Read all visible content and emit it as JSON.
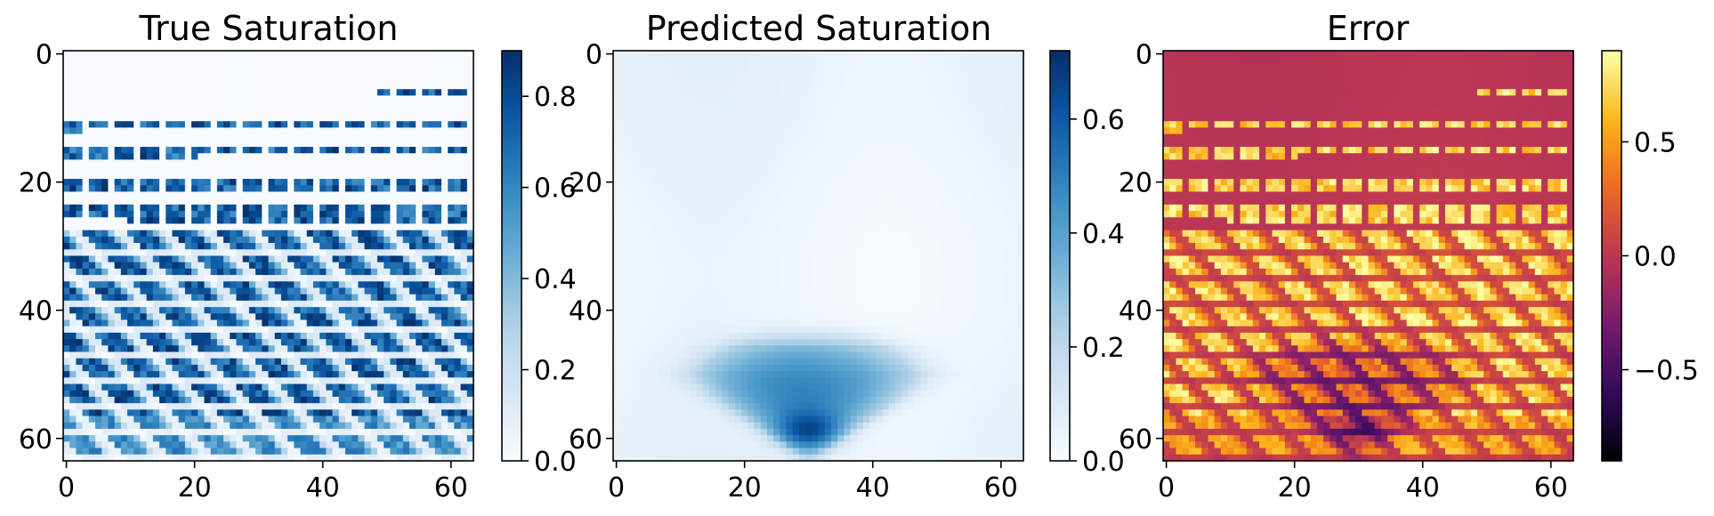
{
  "chart_data": [
    {
      "type": "heatmap",
      "title": "True Saturation",
      "grid_size": 64,
      "xlim": [
        -0.5,
        63.5
      ],
      "ylim": [
        63.5,
        -0.5
      ],
      "x_ticks": [
        0,
        20,
        40,
        60
      ],
      "y_ticks": [
        0,
        20,
        40,
        60
      ],
      "colormap": "Blues",
      "colorbar": {
        "min": 0.0,
        "max": 0.9,
        "ticks": [
          "0.0",
          "0.2",
          "0.4",
          "0.6",
          "0.8"
        ],
        "tick_values": [
          0.0,
          0.2,
          0.4,
          0.6,
          0.8
        ]
      },
      "grid": false
    },
    {
      "type": "heatmap",
      "title": "Predicted Saturation",
      "grid_size": 64,
      "xlim": [
        -0.5,
        63.5
      ],
      "ylim": [
        63.5,
        -0.5
      ],
      "x_ticks": [
        0,
        20,
        40,
        60
      ],
      "y_ticks": [
        0,
        20,
        40,
        60
      ],
      "colormap": "Blues",
      "colorbar": {
        "min": 0.0,
        "max": 0.72,
        "ticks": [
          "0.0",
          "0.2",
          "0.4",
          "0.6"
        ],
        "tick_values": [
          0.0,
          0.2,
          0.4,
          0.6
        ]
      },
      "grid": false
    },
    {
      "type": "heatmap",
      "title": "Error",
      "grid_size": 64,
      "xlim": [
        -0.5,
        63.5
      ],
      "ylim": [
        63.5,
        -0.5
      ],
      "x_ticks": [
        0,
        20,
        40,
        60
      ],
      "y_ticks": [
        0,
        20,
        40,
        60
      ],
      "colormap": "inferno",
      "colorbar": {
        "min": -0.9,
        "max": 0.9,
        "ticks": [
          "−0.5",
          "0.0",
          "0.5"
        ],
        "tick_values": [
          -0.5,
          0.0,
          0.5
        ]
      },
      "grid": false
    }
  ],
  "colors": {
    "blues": [
      "#f7fbff",
      "#deebf7",
      "#c6dbef",
      "#9ecae1",
      "#6baed6",
      "#4292c6",
      "#2171b5",
      "#08519c",
      "#08306b"
    ],
    "inferno": [
      "#000004",
      "#320a5e",
      "#781b6c",
      "#bb3654",
      "#ec6824",
      "#fbb41a",
      "#fcffa4"
    ]
  }
}
